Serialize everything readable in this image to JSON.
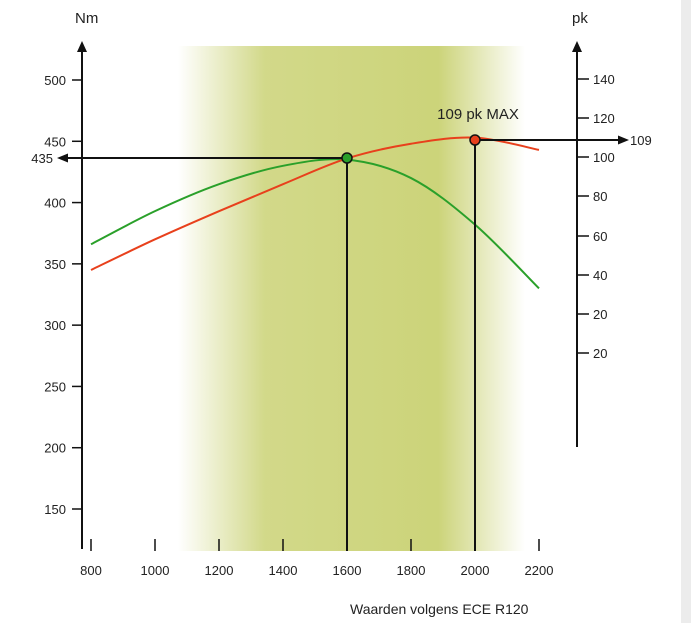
{
  "chart_data": {
    "type": "line",
    "title": "",
    "xlabel": "",
    "ylabel_left": "Nm",
    "ylabel_right": "pk",
    "footer": "Waarden volgens ECE R120",
    "x_ticks": [
      800,
      1000,
      1200,
      1400,
      1600,
      1800,
      2000,
      2200
    ],
    "y_left_ticks": [
      150,
      200,
      250,
      300,
      350,
      400,
      450,
      500
    ],
    "y_right_ticks": [
      "140",
      "120",
      "100",
      "80",
      "60",
      "40",
      "20",
      "20"
    ],
    "xlim": [
      800,
      2200
    ],
    "ylim_left": [
      150,
      500
    ],
    "series": [
      {
        "axis": "left",
        "color": "#2aa02a",
        "x": [
          800,
          1000,
          1200,
          1400,
          1600,
          1800,
          2000,
          2200
        ],
        "y": [
          366,
          393,
          415,
          430,
          435,
          420,
          382,
          330
        ]
      },
      {
        "axis": "left",
        "color": "#e8401c",
        "x": [
          800,
          1000,
          1200,
          1400,
          1600,
          1800,
          2000,
          2200
        ],
        "y": [
          345,
          370,
          393,
          415,
          436,
          448,
          453,
          443
        ]
      }
    ],
    "annotations": {
      "torque_marker": {
        "x": 1600,
        "value_label": "435"
      },
      "power_marker": {
        "x": 2000,
        "label": "109 pk MAX",
        "value_label": "109"
      }
    },
    "band_color": "#c3cc62"
  }
}
